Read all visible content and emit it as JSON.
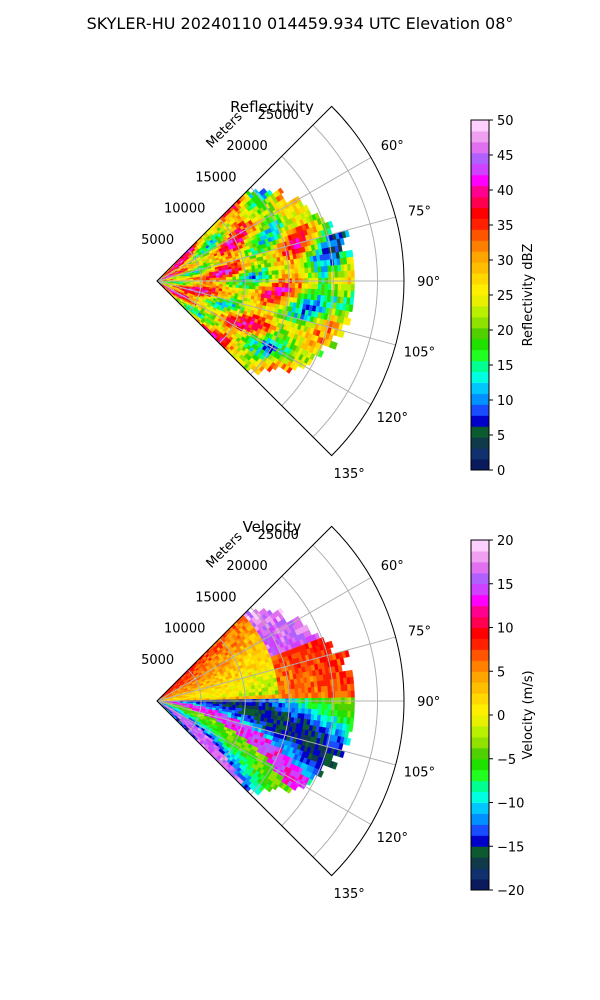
{
  "figure_title": "SKYLER-HU  20240110  014459.934 UTC Elevation 08°",
  "chart_data": [
    {
      "type": "heatmap",
      "projection": "polar-sector",
      "title": "Reflectivity",
      "radial_label": "Meters",
      "radial_ticks": [
        "5000",
        "10000",
        "15000",
        "20000",
        "25000"
      ],
      "radial_tick_values": [
        5000,
        10000,
        15000,
        20000,
        25000
      ],
      "r_max": 28000,
      "theta_range_deg": [
        45,
        135
      ],
      "angle_ticks": [
        "60°",
        "75°",
        "90°",
        "105°",
        "120°",
        "135°"
      ],
      "angle_tick_values": [
        60,
        75,
        90,
        105,
        120,
        135
      ],
      "colorbar": {
        "label": "Reflectivity dBZ",
        "range": [
          0,
          50
        ],
        "ticks": [
          "0",
          "5",
          "10",
          "15",
          "20",
          "25",
          "30",
          "35",
          "40",
          "45",
          "50"
        ],
        "tick_values": [
          0,
          5,
          10,
          15,
          20,
          25,
          30,
          35,
          40,
          45,
          50
        ],
        "colors": [
          "#0a1a5c",
          "#10306e",
          "#103a4a",
          "#0b5a30",
          "#0000c8",
          "#1a4cff",
          "#0090ff",
          "#00c8ff",
          "#00ffe0",
          "#00ff90",
          "#20ff20",
          "#20e000",
          "#50d000",
          "#90e000",
          "#b8f000",
          "#e8f000",
          "#ffee00",
          "#ffd800",
          "#ffbf00",
          "#ffa500",
          "#ff7f00",
          "#ff5500",
          "#ff2000",
          "#ff0000",
          "#ff0050",
          "#ff0090",
          "#ff00ff",
          "#d040ff",
          "#b060ff",
          "#e070f0",
          "#f0a0f0",
          "#ffd0ff"
        ]
      }
    },
    {
      "type": "heatmap",
      "projection": "polar-sector",
      "title": "Velocity",
      "radial_label": "Meters",
      "radial_ticks": [
        "5000",
        "10000",
        "15000",
        "20000",
        "25000"
      ],
      "radial_tick_values": [
        5000,
        10000,
        15000,
        20000,
        25000
      ],
      "r_max": 28000,
      "theta_range_deg": [
        45,
        135
      ],
      "angle_ticks": [
        "60°",
        "75°",
        "90°",
        "105°",
        "120°",
        "135°"
      ],
      "angle_tick_values": [
        60,
        75,
        90,
        105,
        120,
        135
      ],
      "colorbar": {
        "label": "Velocity (m/s)",
        "range": [
          -20,
          20
        ],
        "ticks": [
          "20",
          "15",
          "10",
          "5",
          "0",
          "−5",
          "−10",
          "−15",
          "−20"
        ],
        "tick_values": [
          20,
          15,
          10,
          5,
          0,
          -5,
          -10,
          -15,
          -20
        ],
        "colors": [
          "#0a1a5c",
          "#10306e",
          "#103a4a",
          "#0b5a30",
          "#0000c8",
          "#1a4cff",
          "#0090ff",
          "#00c8ff",
          "#00ffe0",
          "#00ff90",
          "#20ff20",
          "#20e000",
          "#50d000",
          "#90e000",
          "#b8f000",
          "#e8f000",
          "#ffee00",
          "#ffd800",
          "#ffbf00",
          "#ffa500",
          "#ff7f00",
          "#ff5500",
          "#ff2000",
          "#ff0000",
          "#ff0050",
          "#ff0090",
          "#ff00ff",
          "#d040ff",
          "#b060ff",
          "#e070f0",
          "#f0a0f0",
          "#ffd0ff"
        ]
      }
    }
  ]
}
